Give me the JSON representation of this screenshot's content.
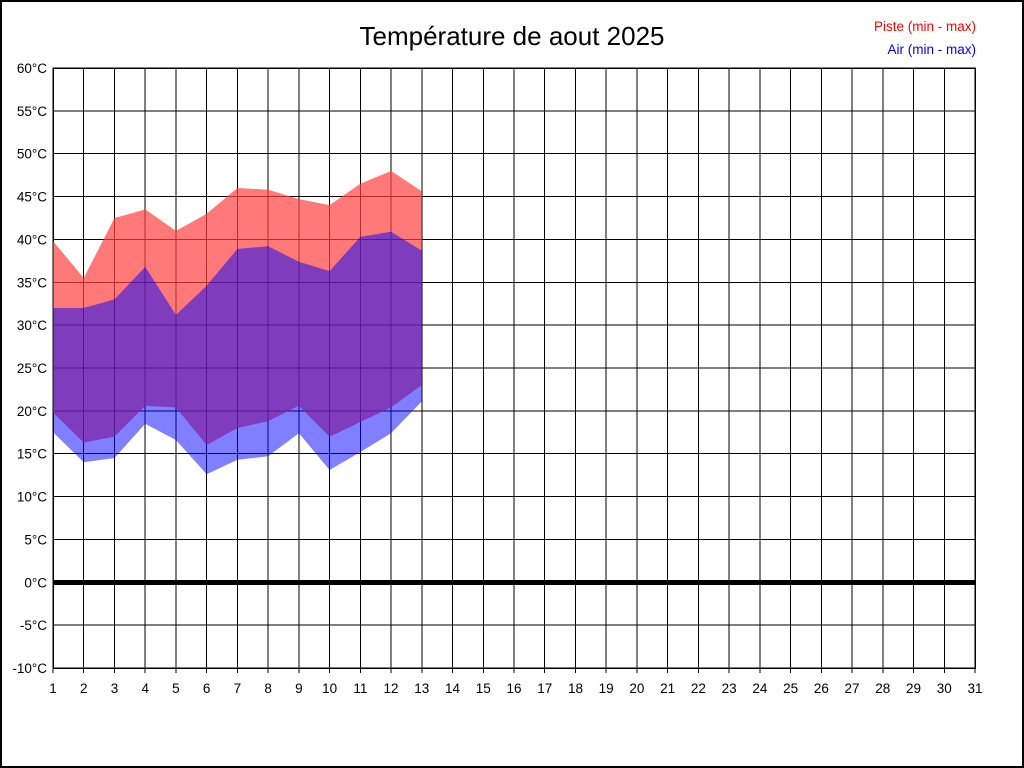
{
  "title": "Température de aout 2025",
  "legend": {
    "piste": {
      "label": "Piste (min - max)",
      "color": "#ff0000"
    },
    "air": {
      "label": "Air (min - max)",
      "color": "#0000ff"
    }
  },
  "chart_data": {
    "type": "area",
    "title": "Température de aout 2025",
    "xlabel": "",
    "ylabel": "",
    "legend_position": "top-right",
    "grid": true,
    "x_axis": {
      "ticks": [
        1,
        2,
        3,
        4,
        5,
        6,
        7,
        8,
        9,
        10,
        11,
        12,
        13,
        14,
        15,
        16,
        17,
        18,
        19,
        20,
        21,
        22,
        23,
        24,
        25,
        26,
        27,
        28,
        29,
        30,
        31
      ],
      "range": [
        1,
        31
      ]
    },
    "y_axis": {
      "min": -10,
      "max": 60,
      "step": 5,
      "unit": "°C",
      "tick_labels": [
        "60°C",
        "55°C",
        "50°C",
        "45°C",
        "40°C",
        "35°C",
        "30°C",
        "25°C",
        "20°C",
        "15°C",
        "10°C",
        "5°C",
        "0°C",
        "-5°C",
        "-10°C"
      ]
    },
    "zero_line": {
      "value": 0,
      "thickness": 5
    },
    "series": [
      {
        "name": "Piste (min - max)",
        "legend_color": "#ff0000",
        "fill": "#ff4040",
        "fill_opacity": 0.7,
        "days": [
          1,
          2,
          3,
          4,
          5,
          6,
          7,
          8,
          9,
          10,
          11,
          12,
          13
        ],
        "max": [
          39.8,
          35.5,
          42.5,
          43.5,
          41.0,
          43.0,
          46.0,
          45.8,
          44.7,
          44.0,
          46.5,
          48.0,
          45.6
        ],
        "min": [
          19.8,
          16.3,
          17.0,
          20.6,
          20.4,
          16.0,
          18.0,
          18.8,
          20.6,
          17.0,
          18.7,
          20.4,
          23.0
        ]
      },
      {
        "name": "Air (min - max)",
        "legend_color": "#0000ff",
        "fill": "#0000ff",
        "fill_opacity": 0.5,
        "days": [
          1,
          2,
          3,
          4,
          5,
          6,
          7,
          8,
          9,
          10,
          11,
          12,
          13
        ],
        "max": [
          32.0,
          32.0,
          33.0,
          36.8,
          31.2,
          34.6,
          38.9,
          39.2,
          37.4,
          36.3,
          40.3,
          40.9,
          38.7
        ],
        "min": [
          17.5,
          14.0,
          14.5,
          18.5,
          16.6,
          12.6,
          14.3,
          14.7,
          17.4,
          13.1,
          15.2,
          17.4,
          21.1
        ]
      }
    ]
  }
}
